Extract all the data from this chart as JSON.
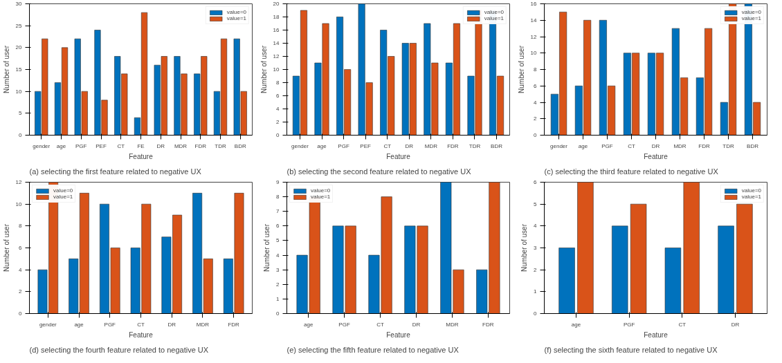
{
  "chart_data": [
    {
      "type": "bar",
      "xlabel": "Feature",
      "ylabel": "Number of user",
      "annotations": [
        "(a) selecting the first feature related to negative UX"
      ],
      "categories": [
        "gender",
        "age",
        "PGF",
        "PEF",
        "CT",
        "FE",
        "DR",
        "MDR",
        "FDR",
        "TDR",
        "BDR"
      ],
      "ylim": [
        0,
        30
      ],
      "yticks": [
        0,
        5,
        10,
        15,
        20,
        25,
        30
      ],
      "grid": false,
      "legend": "top right",
      "series": [
        {
          "name": "value=0",
          "color": "#0072bd",
          "values": [
            10,
            12,
            22,
            24,
            18,
            4,
            16,
            18,
            14,
            10,
            22
          ]
        },
        {
          "name": "value=1",
          "color": "#d95319",
          "values": [
            22,
            20,
            10,
            8,
            14,
            28,
            18,
            14,
            18,
            22,
            10
          ]
        }
      ]
    },
    {
      "type": "bar",
      "xlabel": "Feature",
      "ylabel": "Number of user",
      "annotations": [
        "(b) selecting the second feature related to negative UX"
      ],
      "categories": [
        "gender",
        "age",
        "PGF",
        "PEF",
        "CT",
        "DR",
        "MDR",
        "FDR",
        "TDR",
        "BDR"
      ],
      "ylim": [
        0,
        20
      ],
      "yticks": [
        0,
        2,
        4,
        6,
        8,
        10,
        12,
        14,
        16,
        18,
        20
      ],
      "grid": false,
      "legend": "top right",
      "series": [
        {
          "name": "value=0",
          "color": "#0072bd",
          "values": [
            9,
            11,
            18,
            20,
            16,
            14,
            17,
            11,
            9,
            19
          ]
        },
        {
          "name": "value=1",
          "color": "#d95319",
          "values": [
            19,
            17,
            10,
            8,
            12,
            14,
            11,
            17,
            19,
            9
          ]
        }
      ]
    },
    {
      "type": "bar",
      "xlabel": "Feature",
      "ylabel": "Number of user",
      "annotations": [
        "(c) selecting the third feature related to negative UX"
      ],
      "categories": [
        "gender",
        "age",
        "PGF",
        "CT",
        "DR",
        "MDR",
        "FDR",
        "TDR",
        "BDR"
      ],
      "ylim": [
        0,
        16
      ],
      "yticks": [
        0,
        2,
        4,
        6,
        8,
        10,
        12,
        14,
        16
      ],
      "grid": false,
      "legend": "top right",
      "series": [
        {
          "name": "value=0",
          "color": "#0072bd",
          "values": [
            5,
            6,
            14,
            10,
            10,
            13,
            7,
            4,
            16
          ]
        },
        {
          "name": "value=1",
          "color": "#d95319",
          "values": [
            15,
            14,
            6,
            10,
            10,
            7,
            13,
            16,
            4
          ]
        }
      ]
    },
    {
      "type": "bar",
      "xlabel": "Feature",
      "ylabel": "Number of user",
      "annotations": [
        "(d) selecting the fourth feature related to negative UX"
      ],
      "categories": [
        "gender",
        "age",
        "PGF",
        "CT",
        "DR",
        "MDR",
        "FDR"
      ],
      "ylim": [
        0,
        12
      ],
      "yticks": [
        0,
        2,
        4,
        6,
        8,
        10,
        12
      ],
      "grid": false,
      "legend": "top left",
      "series": [
        {
          "name": "value=0",
          "color": "#0072bd",
          "values": [
            4,
            5,
            10,
            6,
            7,
            11,
            5
          ]
        },
        {
          "name": "value=1",
          "color": "#d95319",
          "values": [
            12,
            11,
            6,
            10,
            9,
            5,
            11
          ]
        }
      ]
    },
    {
      "type": "bar",
      "xlabel": "Feature",
      "ylabel": "Number of user",
      "annotations": [
        "(e) selecting the fifth feature related to negative UX"
      ],
      "categories": [
        "age",
        "PGF",
        "CT",
        "DR",
        "MDR",
        "FDR"
      ],
      "ylim": [
        0,
        9
      ],
      "yticks": [
        0,
        1,
        2,
        3,
        4,
        5,
        6,
        7,
        8,
        9
      ],
      "grid": false,
      "legend": "top left",
      "series": [
        {
          "name": "value=0",
          "color": "#0072bd",
          "values": [
            4,
            6,
            4,
            6,
            9,
            3
          ]
        },
        {
          "name": "value=1",
          "color": "#d95319",
          "values": [
            8,
            6,
            8,
            6,
            3,
            9
          ]
        }
      ]
    },
    {
      "type": "bar",
      "xlabel": "Feature",
      "ylabel": "Number of user",
      "annotations": [
        "(f) selecting the sixth feature related to negative UX"
      ],
      "categories": [
        "age",
        "PGF",
        "CT",
        "DR"
      ],
      "ylim": [
        0,
        6
      ],
      "yticks": [
        0,
        1,
        2,
        3,
        4,
        5,
        6
      ],
      "grid": false,
      "legend": "top right",
      "series": [
        {
          "name": "value=0",
          "color": "#0072bd",
          "values": [
            3,
            4,
            3,
            4
          ]
        },
        {
          "name": "value=1",
          "color": "#d95319",
          "values": [
            6,
            5,
            6,
            5
          ]
        }
      ]
    }
  ]
}
